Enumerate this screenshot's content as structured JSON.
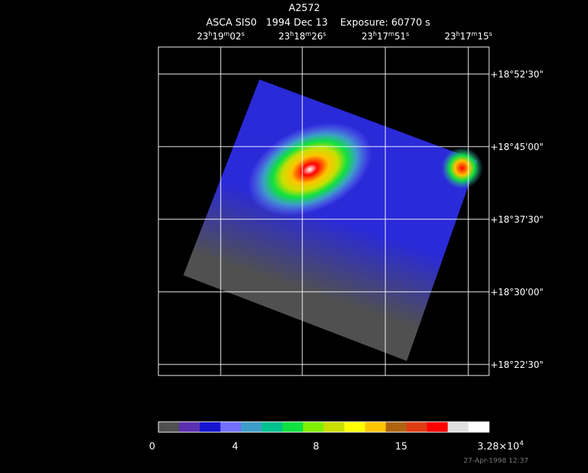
{
  "header": {
    "title": "A2572",
    "subtitle": "ASCA SIS0   1994 Dec 13    Exposure: 60770 s"
  },
  "ra_labels": [
    [
      "23",
      "h",
      "19",
      "m",
      "02",
      "s"
    ],
    [
      "23",
      "h",
      "18",
      "m",
      "26",
      "s"
    ],
    [
      "23",
      "h",
      "17",
      "m",
      "51",
      "s"
    ],
    [
      "23",
      "h",
      "17",
      "m",
      "15",
      "s"
    ]
  ],
  "dec_labels": [
    "+18°52'30\"",
    "+18°45'00\"",
    "+18°37'30\"",
    "+18°30'00\"",
    "+18°22'30\""
  ],
  "colorbar": {
    "colors": [
      "#505050",
      "#5a2fb0",
      "#1414d0",
      "#7070ff",
      "#3c9ec8",
      "#00c08c",
      "#10e040",
      "#80f000",
      "#c8e000",
      "#ffff00",
      "#ffc400",
      "#b06410",
      "#e03c14",
      "#ff0000",
      "#e0e0e0",
      "#ffffff"
    ],
    "labels": [
      "0",
      "4",
      "8",
      "15"
    ],
    "max_label": [
      "3.28×10",
      "4"
    ]
  },
  "timestamp": "27-Apr-1998 12:37"
}
